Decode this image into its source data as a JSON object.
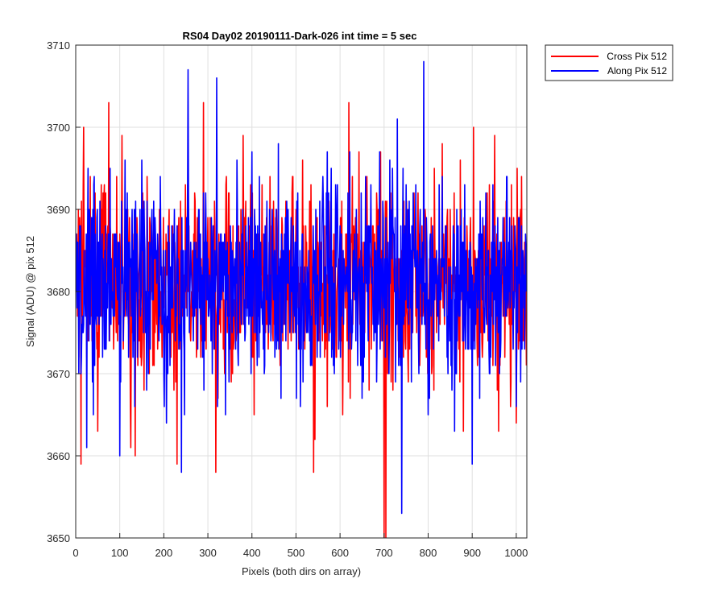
{
  "chart_data": {
    "type": "line",
    "title": "RS04 Day02 20190111-Dark-026 int time = 5 sec",
    "xlabel": "Pixels (both dirs on array)",
    "ylabel": "Signal (ADU) @ pix 512",
    "xlim": [
      0,
      1024
    ],
    "ylim": [
      3650,
      3710
    ],
    "xticks": [
      0,
      100,
      200,
      300,
      400,
      500,
      600,
      700,
      800,
      900,
      1000
    ],
    "yticks": [
      3650,
      3660,
      3670,
      3680,
      3690,
      3700,
      3710
    ],
    "grid": true,
    "legend_position": "outside-top-right",
    "series_stats": {
      "mean": 3681,
      "sample_count": 1024
    },
    "series": [
      {
        "name": "Cross Pix 512",
        "color": "#ff0000",
        "x": [
          0,
          12,
          18,
          75,
          105,
          125,
          135,
          190,
          230,
          290,
          318,
          380,
          520,
          540,
          620,
          700,
          704,
          800,
          880,
          903,
          960,
          1000,
          1024
        ],
        "y": [
          3680,
          3659,
          3700,
          3703,
          3699,
          3661,
          3660,
          3690,
          3659,
          3703,
          3658,
          3699,
          3673,
          3658,
          3703,
          3650,
          3650,
          3678,
          3663,
          3700,
          3663,
          3664,
          3680
        ]
      },
      {
        "name": "Along Pix 512",
        "color": "#0000ff",
        "x": [
          0,
          25,
          40,
          100,
          150,
          160,
          200,
          240,
          255,
          320,
          340,
          400,
          460,
          510,
          580,
          650,
          690,
          730,
          740,
          790,
          800,
          860,
          900,
          940,
          1000,
          1024
        ],
        "y": [
          3680,
          3661,
          3665,
          3660,
          3696,
          3680,
          3670,
          3658,
          3707,
          3706,
          3665,
          3697,
          3698,
          3666,
          3695,
          3667,
          3697,
          3701,
          3653,
          3708,
          3665,
          3663,
          3659,
          3670,
          3666,
          3680
        ]
      }
    ]
  }
}
